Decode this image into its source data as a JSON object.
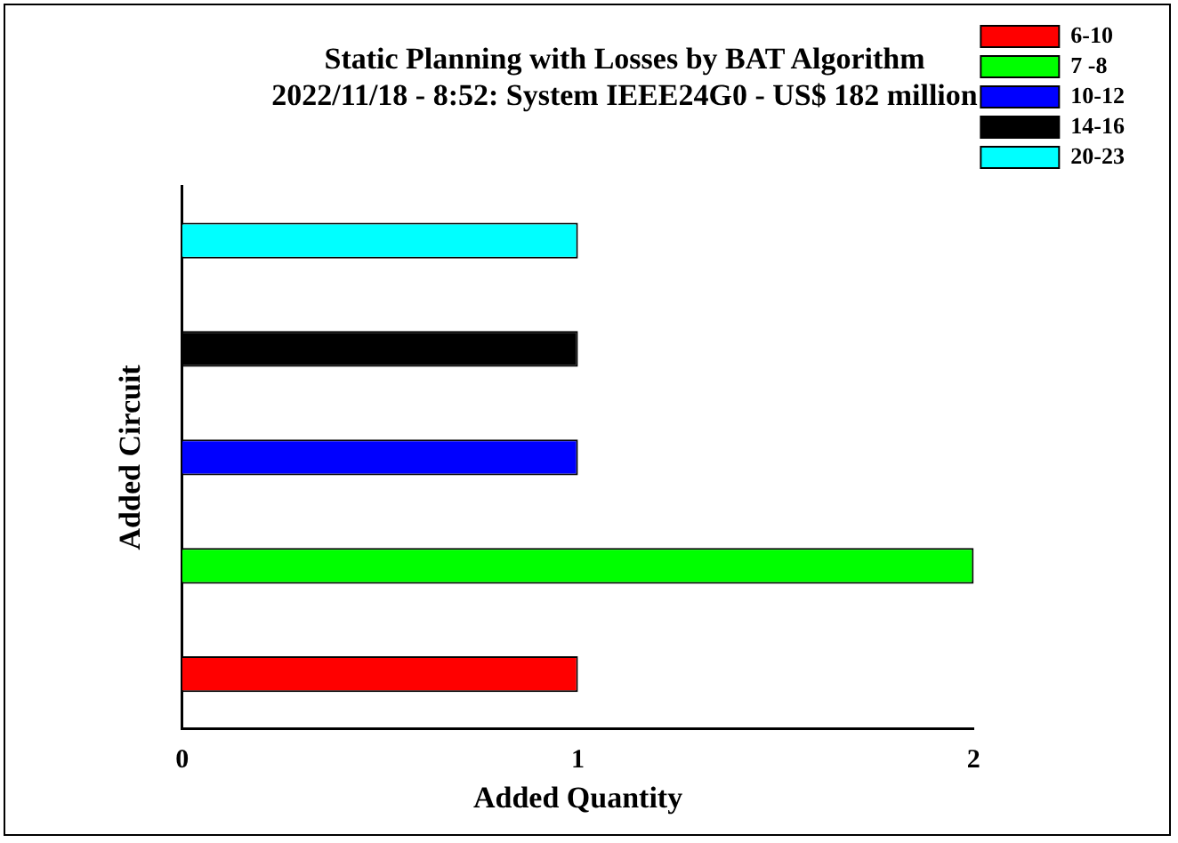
{
  "chart_data": {
    "type": "bar",
    "orientation": "horizontal",
    "title": "Static Planning with Losses by BAT Algorithm",
    "subtitle": "2022/11/18 - 8:52: System IEEE24G0 - US$ 182 million",
    "xlabel": "Added Quantity",
    "ylabel": "Added Circuit",
    "categories": [
      null,
      null,
      null,
      null,
      null
    ],
    "series": [
      {
        "name": "6-10",
        "color": "#ff0000",
        "values": [
          null,
          null,
          null,
          null,
          1
        ]
      },
      {
        "name": "7 -8",
        "color": "#00ff00",
        "values": [
          null,
          null,
          null,
          2,
          null
        ]
      },
      {
        "name": "10-12",
        "color": "#0000ff",
        "values": [
          null,
          null,
          1,
          null,
          null
        ]
      },
      {
        "name": "14-16",
        "color": "#000000",
        "values": [
          null,
          1,
          null,
          null,
          null
        ]
      },
      {
        "name": "20-23",
        "color": "#00ffff",
        "values": [
          1,
          null,
          null,
          null,
          null
        ]
      }
    ],
    "xlim": [
      0,
      2
    ],
    "xticks": [
      0,
      1,
      2
    ],
    "grid": false,
    "legend": "top right"
  }
}
